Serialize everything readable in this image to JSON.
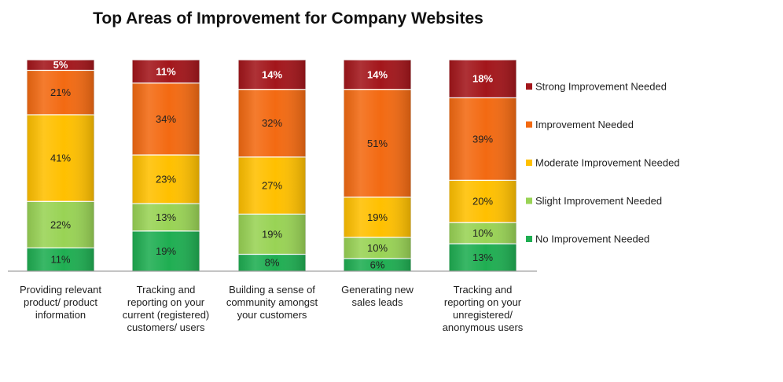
{
  "chart_data": {
    "type": "bar",
    "stacked": true,
    "percent_stacked": true,
    "title": "Top Areas of Improvement for Company Websites",
    "categories": [
      "Providing relevant product/ product information",
      "Tracking and reporting on your current (registered) customers/ users",
      "Building a sense of community amongst your customers",
      "Generating new sales leads",
      "Tracking and reporting on your unregistered/ anonymous users"
    ],
    "category_lines": [
      [
        "Providing relevant",
        "product/ product",
        "information"
      ],
      [
        "Tracking and",
        "reporting on your",
        "current (registered)",
        "customers/ users"
      ],
      [
        "Building a sense of",
        "community amongst",
        "your customers"
      ],
      [
        "Generating new",
        "sales leads"
      ],
      [
        "Tracking and",
        "reporting on your",
        "unregistered/",
        "anonymous users"
      ]
    ],
    "series": [
      {
        "name": "No Improvement Needed",
        "color": "#1fae52",
        "values": [
          11,
          19,
          8,
          6,
          13
        ]
      },
      {
        "name": "Slight Improvement Needed",
        "color": "#99d355",
        "values": [
          22,
          13,
          19,
          10,
          10
        ]
      },
      {
        "name": "Moderate Improvement Needed",
        "color": "#ffc000",
        "values": [
          41,
          23,
          27,
          19,
          20
        ]
      },
      {
        "name": "Improvement Needed",
        "color": "#f36a12",
        "values": [
          21,
          34,
          32,
          51,
          39
        ]
      },
      {
        "name": "Strong Improvement Needed",
        "color": "#a3161b",
        "values": [
          5,
          11,
          14,
          14,
          18
        ]
      }
    ],
    "legend_order": [
      4,
      3,
      2,
      1,
      0
    ],
    "legend_position": "right",
    "ylim": [
      0,
      100
    ],
    "grid": false,
    "value_format": "{v}%"
  }
}
